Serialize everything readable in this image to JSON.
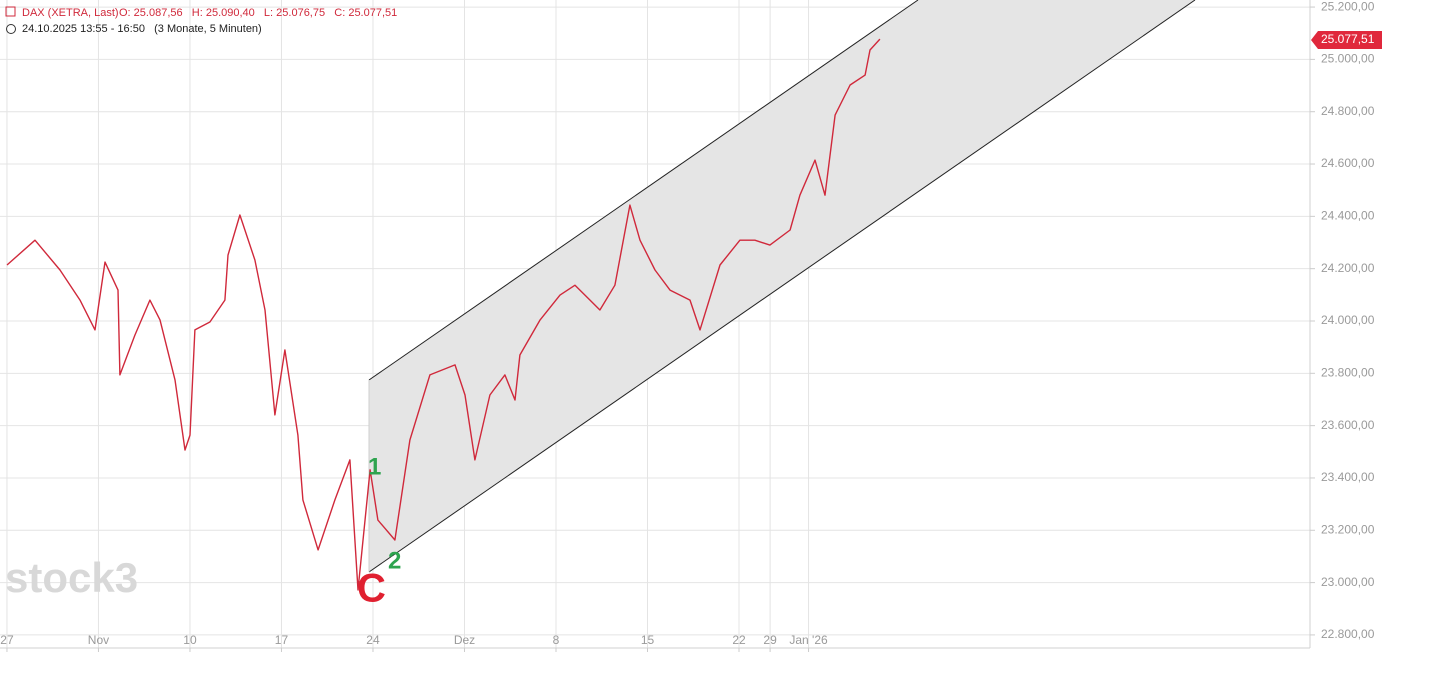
{
  "chart_data": {
    "type": "line",
    "header": "DAX (XETRA, Last)",
    "ohlc": "O: 25.087,56   H: 25.090,40   L: 25.076,75   C: 25.077,51",
    "subtitle": "24.10.2025 13:55 - 16:50   (3 Monate, 5 Minuten)",
    "watermark": "stock3",
    "last_price_label": "25.077,51",
    "annotations": [
      "1",
      "2",
      "C"
    ],
    "x": [
      0,
      1.53,
      2.9,
      3.99,
      4.81,
      5.36,
      6.07,
      6.17,
      6.99,
      7.81,
      8.36,
      9.18,
      9.73,
      10.0,
      10.27,
      11.09,
      11.91,
      12.08,
      12.73,
      13.55,
      14.1,
      14.64,
      15.19,
      15.9,
      16.17,
      17.0,
      17.92,
      18.74,
      19.18,
      19.84,
      20.27,
      21.2,
      22.02,
      23.11,
      24.48,
      25.03,
      25.57,
      26.39,
      27.21,
      27.76,
      28.03,
      29.13,
      30.22,
      31.04,
      31.86,
      32.4,
      33.22,
      34.04,
      34.59,
      35.41,
      36.23,
      37.32,
      37.87,
      38.96,
      40.05,
      40.87,
      41.69,
      42.79,
      43.33,
      44.15,
      44.7,
      45.25,
      46.07,
      46.89,
      47.16,
      47.7
    ],
    "series": [
      {
        "name": "DAX",
        "color": "#d0293b",
        "values": [
          24214,
          24309,
          24195,
          24080,
          23966,
          24225,
          24118,
          23794,
          23946,
          24080,
          24004,
          23775,
          23507,
          23564,
          23966,
          23996,
          24080,
          24252,
          24405,
          24233,
          24042,
          23641,
          23889,
          23564,
          23316,
          23125,
          23316,
          23469,
          22972,
          23431,
          23239,
          23163,
          23545,
          23794,
          23832,
          23717,
          23469,
          23717,
          23794,
          23698,
          23870,
          24004,
          24099,
          24137,
          24080,
          24042,
          24137,
          24443,
          24309,
          24195,
          24118,
          24080,
          23966,
          24214,
          24309,
          24309,
          24290,
          24348,
          24481,
          24615,
          24481,
          24787,
          24902,
          24940,
          25036,
          25077.51
        ]
      }
    ],
    "xlim": [
      -0.38,
      71.2
    ],
    "xticks": [
      {
        "value": 0,
        "label": "27"
      },
      {
        "value": 5,
        "label": "Nov"
      },
      {
        "value": 10,
        "label": "10"
      },
      {
        "value": 15,
        "label": "17"
      },
      {
        "value": 20,
        "label": "24"
      },
      {
        "value": 25,
        "label": "Dez"
      },
      {
        "value": 30,
        "label": "8"
      },
      {
        "value": 35,
        "label": "15"
      },
      {
        "value": 40,
        "label": "22"
      },
      {
        "value": 41.7,
        "label": "29"
      },
      {
        "value": 43.8,
        "label": "Jan '26"
      }
    ],
    "ylim": [
      22750,
      25227
    ],
    "yticks": [
      {
        "value": 22800,
        "label": "22.800,00"
      },
      {
        "value": 23000,
        "label": "23.000,00"
      },
      {
        "value": 23200,
        "label": "23.200,00"
      },
      {
        "value": 23400,
        "label": "23.400,00"
      },
      {
        "value": 23600,
        "label": "23.600,00"
      },
      {
        "value": 23800,
        "label": "23.800,00"
      },
      {
        "value": 24000,
        "label": "24.000,00"
      },
      {
        "value": 24200,
        "label": "24.200,00"
      },
      {
        "value": 24400,
        "label": "24.400,00"
      },
      {
        "value": 24600,
        "label": "24.600,00"
      },
      {
        "value": 24800,
        "label": "24.800,00"
      },
      {
        "value": 25000,
        "label": "25.000,00"
      },
      {
        "value": 25200,
        "label": "25.200,00"
      }
    ],
    "grid": true
  }
}
